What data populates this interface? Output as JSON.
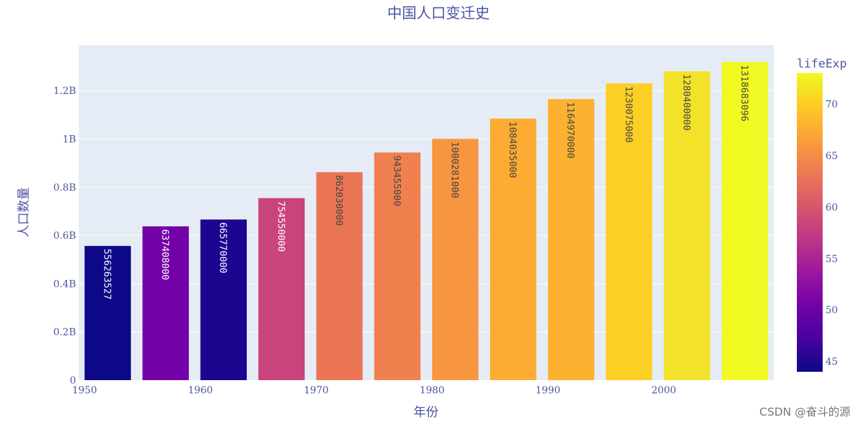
{
  "chart_data": {
    "type": "bar",
    "title": "中国人口变迁史",
    "xlabel": "年份",
    "ylabel": "人口数量",
    "x": [
      1952,
      1957,
      1962,
      1967,
      1972,
      1977,
      1982,
      1987,
      1992,
      1997,
      2002,
      2007
    ],
    "values": [
      556263527,
      637408000,
      665770000,
      754550000,
      862030000,
      943455000,
      1000281000,
      1084035000,
      1164970000,
      1230075000,
      1280400000,
      1318683096
    ],
    "bar_labels": [
      "556263527",
      "637408000",
      "665770000",
      "754550000",
      "862030000",
      "943455000",
      "1000281000",
      "1084035000",
      "1164970000",
      "1230075000",
      "1280400000",
      "1318683096"
    ],
    "colors": [
      "#0d0887",
      "#7201a8",
      "#1c068f",
      "#c9447a",
      "#eb7655",
      "#f0804e",
      "#f89540",
      "#fcac33",
      "#fdb130",
      "#fccf25",
      "#f3e22a",
      "#f0f921"
    ],
    "x_ticks": [
      1950,
      1960,
      1970,
      1980,
      1990,
      2000
    ],
    "x_tick_labels": [
      "1950",
      "1960",
      "1970",
      "1980",
      "1990",
      "2000"
    ],
    "xlim": [
      1949.5,
      2009.5
    ],
    "y_ticks": [
      0,
      200000000,
      400000000,
      600000000,
      800000000,
      1000000000,
      1200000000
    ],
    "y_tick_labels": [
      "0",
      "0.2B",
      "0.4B",
      "0.6B",
      "0.8B",
      "1B",
      "1.2B"
    ],
    "ylim": [
      0,
      1388087469
    ],
    "grid": true,
    "colorbar": {
      "title": "lifeExp",
      "range": [
        44,
        73
      ],
      "ticks": [
        45,
        50,
        55,
        60,
        65,
        70
      ],
      "tick_labels": [
        "45",
        "50",
        "55",
        "60",
        "65",
        "70"
      ],
      "colorscale": [
        "#0d0887",
        "#46039f",
        "#7201a8",
        "#9c179e",
        "#bd3786",
        "#d8576b",
        "#ed7953",
        "#fb9f3a",
        "#fdca26",
        "#f0f921"
      ]
    }
  },
  "watermark": "CSDN @奋斗的源"
}
